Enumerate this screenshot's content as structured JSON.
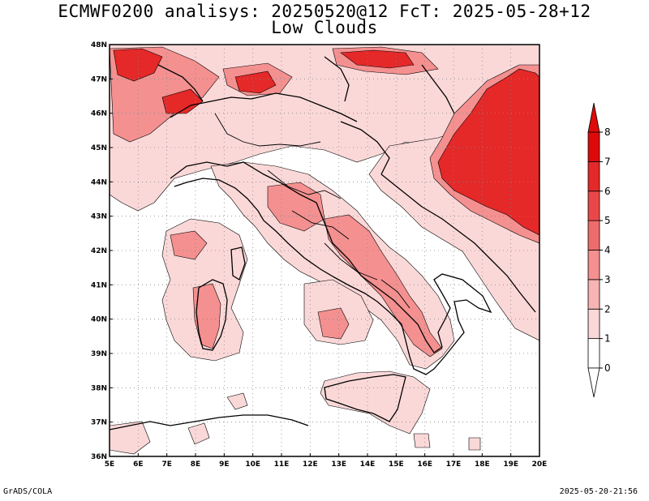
{
  "title": {
    "line1": "ECMWF0200 analisys: 20250520@12 FcT: 2025-05-28+12",
    "line2": "Low Clouds"
  },
  "footer": {
    "left": "GrADS/COLA",
    "right": "2025-05-20-21:56"
  },
  "map": {
    "lon_ticks": [
      "5E",
      "6E",
      "7E",
      "8E",
      "9E",
      "10E",
      "11E",
      "12E",
      "13E",
      "14E",
      "15E",
      "16E",
      "17E",
      "18E",
      "19E",
      "20E"
    ],
    "lat_ticks": [
      "36N",
      "37N",
      "38N",
      "39N",
      "40N",
      "41N",
      "42N",
      "43N",
      "44N",
      "45N",
      "46N",
      "47N",
      "48N"
    ],
    "lon_range": [
      5,
      20
    ],
    "lat_range": [
      36,
      48
    ],
    "gridlines": "dotted"
  },
  "colorbar": {
    "labels": [
      "0",
      "1",
      "2",
      "3",
      "4",
      "5",
      "6",
      "7",
      "8"
    ],
    "colors": [
      "#ffffff",
      "#fbd8d8",
      "#f8b4b4",
      "#f49090",
      "#ef6c6c",
      "#ea4848",
      "#e52828",
      "#de0a0a"
    ]
  },
  "colors": {
    "level1": "#fbd8d8",
    "level2": "#f8b4b4",
    "level3": "#f49090",
    "level4": "#ef6c6c",
    "level6": "#e52828"
  }
}
